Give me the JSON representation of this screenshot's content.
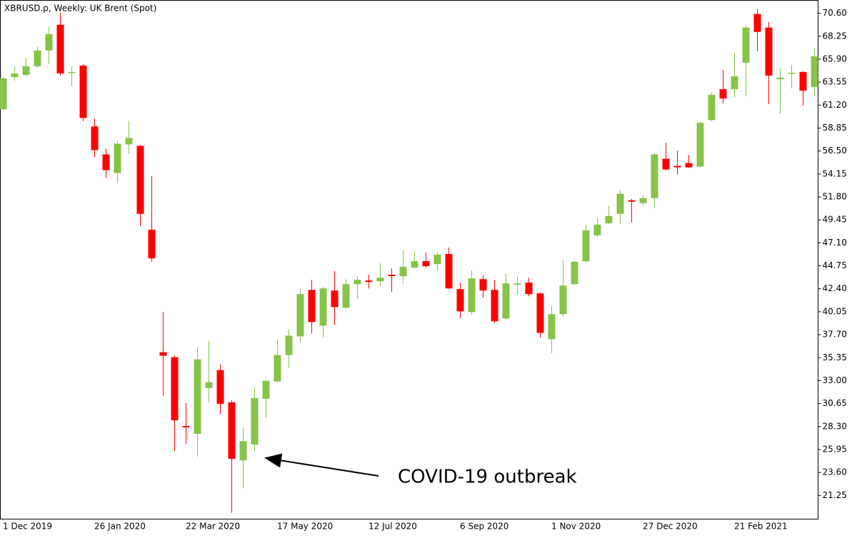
{
  "chart_data": {
    "type": "candlestick",
    "title": "XBRUSD.p, Weekly:  UK Brent (Spot)",
    "annotation": "COVID-19 outbreak",
    "up_color": "#86c349",
    "down_color": "#ff0000",
    "categories": [
      "1 Dec 2019",
      null,
      null,
      null,
      null,
      null,
      null,
      null,
      "26 Jan 2020",
      null,
      null,
      null,
      null,
      null,
      null,
      null,
      "22 Mar 2020",
      null,
      null,
      null,
      null,
      null,
      null,
      null,
      "17 May 2020",
      null,
      null,
      null,
      null,
      null,
      null,
      null,
      "12 Jul 2020",
      null,
      null,
      null,
      null,
      null,
      null,
      null,
      "6 Sep 2020",
      null,
      null,
      null,
      null,
      null,
      null,
      null,
      "1 Nov 2020",
      null,
      null,
      null,
      null,
      null,
      null,
      null,
      "27 Dec 2020",
      null,
      null,
      null,
      null,
      null,
      null,
      null,
      "21 Feb 2021",
      null,
      null,
      null,
      null,
      null,
      null,
      null
    ],
    "open": [
      60.77,
      64.07,
      64.29,
      65.17,
      66.79,
      69.43,
      64.51,
      65.25,
      59.01,
      56.15,
      54.25,
      57.18,
      57.03,
      48.45,
      35.91,
      35.4,
      28.36,
      27.56,
      32.25,
      34.08,
      30.78,
      24.84,
      26.46,
      31.15,
      32.91,
      35.62,
      37.53,
      42.29,
      38.63,
      42.22,
      40.46,
      42.88,
      43.25,
      43.17,
      43.83,
      43.69,
      44.57,
      45.23,
      44.93,
      45.96,
      42.37,
      40.02,
      43.39,
      42.29,
      39.36,
      42.81,
      43.03,
      41.93,
      37.24,
      39.8,
      42.88,
      45.23,
      47.87,
      49.11,
      50.07,
      51.46,
      51.17,
      51.68,
      55.71,
      54.98,
      55.27,
      54.91,
      59.67,
      62.83,
      62.83,
      65.54,
      70.53,
      69.13,
      63.85,
      64.44,
      64.59,
      63.05
    ],
    "high": [
      64.07,
      65.17,
      66.05,
      67.15,
      69.21,
      70.67,
      65.17,
      65.39,
      59.82,
      56.74,
      57.55,
      59.6,
      57.11,
      53.95,
      40.02,
      35.55,
      30.71,
      36.43,
      37.09,
      34.67,
      31.0,
      28.14,
      32.32,
      33.06,
      37.16,
      38.26,
      42.44,
      43.32,
      42.59,
      44.2,
      43.39,
      43.69,
      43.83,
      45.01,
      44.49,
      46.33,
      46.26,
      46.11,
      46.11,
      46.62,
      43.03,
      44.27,
      43.76,
      43.32,
      43.98,
      43.69,
      43.54,
      42.0,
      40.61,
      45.3,
      45.23,
      48.97,
      49.63,
      50.87,
      52.49,
      51.61,
      51.97,
      56.3,
      57.33,
      56.52,
      56.08,
      59.53,
      62.46,
      64.81,
      66.57,
      69.35,
      71.04,
      69.72,
      64.95,
      65.32,
      64.66,
      67.01
    ],
    "low": [
      60.77,
      63.71,
      64.22,
      65.03,
      65.39,
      64.22,
      63.12,
      59.53,
      55.86,
      53.73,
      53.22,
      56.23,
      48.82,
      45.16,
      31.44,
      25.8,
      26.53,
      25.21,
      30.71,
      29.61,
      19.49,
      21.98,
      25.8,
      29.24,
      32.84,
      34.3,
      36.94,
      37.82,
      37.45,
      38.7,
      40.39,
      41.41,
      42.44,
      42.66,
      42.07,
      42.95,
      44.49,
      44.57,
      44.27,
      42.37,
      39.43,
      39.73,
      41.49,
      38.92,
      39.29,
      41.78,
      41.63,
      37.38,
      35.84,
      39.58,
      42.81,
      45.08,
      47.72,
      49.04,
      49.04,
      49.19,
      50.95,
      50.65,
      54.54,
      54.1,
      54.76,
      54.83,
      59.53,
      61.36,
      61.95,
      62.09,
      66.71,
      61.29,
      60.33,
      62.9,
      61.14,
      62.09
    ],
    "close": [
      63.93,
      64.44,
      65.17,
      66.79,
      68.47,
      64.44,
      64.59,
      59.89,
      56.59,
      54.54,
      57.25,
      57.84,
      50.07,
      45.52,
      35.55,
      28.95,
      28.22,
      35.18,
      32.84,
      30.63,
      24.99,
      26.81,
      31.22,
      32.98,
      35.62,
      37.6,
      41.85,
      39.0,
      42.44,
      40.53,
      42.88,
      43.32,
      43.1,
      43.54,
      43.69,
      44.64,
      45.23,
      44.71,
      45.89,
      42.44,
      40.09,
      43.47,
      42.22,
      39.07,
      42.95,
      42.95,
      41.85,
      37.89,
      39.8,
      42.73,
      45.16,
      48.38,
      48.97,
      49.85,
      52.12,
      51.31,
      51.68,
      56.15,
      54.61,
      54.83,
      54.83,
      59.38,
      62.24,
      61.87,
      64.15,
      69.13,
      68.69,
      64.22,
      64.0,
      64.51,
      62.68,
      66.2
    ],
    "ylim": [
      18.83,
      71.92
    ],
    "yticks": [
      {
        "value": 70.6,
        "label": "70.60"
      },
      68.25,
      {
        "value": 65.9,
        "label": "65.90"
      },
      63.55,
      {
        "value": 61.2,
        "label": "61.20"
      },
      58.85,
      {
        "value": 56.5,
        "label": "56.50"
      },
      54.15,
      {
        "value": 51.8,
        "label": "51.80"
      },
      49.45,
      {
        "value": 47.1,
        "label": "47.10"
      },
      44.75,
      {
        "value": 42.4,
        "label": "42.40"
      },
      40.05,
      {
        "value": 37.7,
        "label": "37.70"
      },
      35.35,
      {
        "value": 33,
        "label": "33.00"
      },
      30.65,
      {
        "value": 28.3,
        "label": "28.30"
      },
      25.95,
      {
        "value": 23.6,
        "label": "23.60"
      },
      21.25
    ]
  }
}
